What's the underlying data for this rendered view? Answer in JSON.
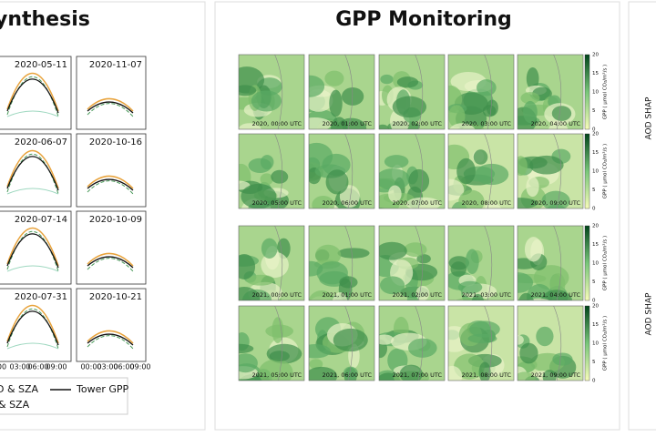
{
  "left_panel": {
    "title": "ynthesis",
    "plots": [
      {
        "date": "2020-05-11"
      },
      {
        "date": "2020-11-07"
      },
      {
        "date": "2020-06-07"
      },
      {
        "date": "2020-10-16"
      },
      {
        "date": "2020-07-14"
      },
      {
        "date": "2020-10-09"
      },
      {
        "date": "2020-07-31"
      },
      {
        "date": "2020-10-21"
      }
    ],
    "x_ticks_left": [
      "00",
      "03:00",
      "06:00",
      "09:00"
    ],
    "x_ticks_right": [
      "00:00",
      "03:00",
      "06:00",
      "09:00"
    ],
    "legend": [
      "D & SZA",
      "& SZA",
      "Tower GPP"
    ]
  },
  "middle_panel": {
    "title": "GPP Monitoring",
    "maps": [
      [
        "2020, 00:00 UTC",
        "2020, 01:00 UTC",
        "2020, 02:00 UTC",
        "2020, 03:00 UTC",
        "2020, 04:00 UTC"
      ],
      [
        "2020, 05:00 UTC",
        "2020, 06:00 UTC",
        "2020, 07:00 UTC",
        "2020, 08:00 UTC",
        "2020, 09:00 UTC"
      ],
      [
        "2021, 00:00 UTC",
        "2021, 01:00 UTC",
        "2021, 02:00 UTC",
        "2021, 03:00 UTC",
        "2021, 04:00 UTC"
      ],
      [
        "2021, 05:00 UTC",
        "2021, 06:00 UTC",
        "2021, 07:00 UTC",
        "2021, 08:00 UTC",
        "2021, 09:00 UTC"
      ]
    ],
    "colorbar": {
      "ticks": [
        0,
        5,
        10,
        15,
        20
      ],
      "label": "GPP ( μmol CO₂/m²/s )"
    }
  },
  "right_panel": {
    "labels": [
      "AOD SHAP",
      "AOD SHAP"
    ]
  }
}
